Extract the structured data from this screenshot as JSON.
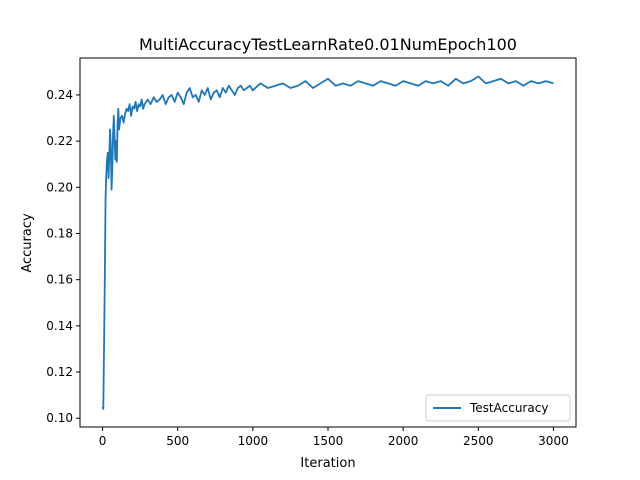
{
  "chart_data": {
    "type": "line",
    "title": "MultiAccuracyTestLearnRate0.01NumEpoch100",
    "xlabel": "Iteration",
    "ylabel": "Accuracy",
    "xlim": [
      -150,
      3150
    ],
    "ylim": [
      0.0962,
      0.256
    ],
    "xticks": [
      0,
      500,
      1000,
      1500,
      2000,
      2500,
      3000
    ],
    "yticks": [
      0.1,
      0.12,
      0.14,
      0.16,
      0.18,
      0.2,
      0.22,
      0.24
    ],
    "legend_position": "lower right",
    "grid": false,
    "color": "#1f77b4",
    "series": [
      {
        "name": "TestAccuracy",
        "x": [
          0,
          5,
          10,
          15,
          20,
          25,
          30,
          35,
          40,
          45,
          50,
          55,
          60,
          65,
          70,
          75,
          80,
          85,
          90,
          95,
          100,
          105,
          110,
          115,
          120,
          130,
          140,
          150,
          160,
          170,
          180,
          190,
          200,
          210,
          220,
          230,
          240,
          250,
          260,
          270,
          280,
          290,
          300,
          320,
          340,
          360,
          380,
          400,
          420,
          440,
          460,
          480,
          500,
          520,
          540,
          560,
          580,
          600,
          620,
          640,
          660,
          680,
          700,
          720,
          740,
          760,
          780,
          800,
          820,
          840,
          860,
          880,
          900,
          920,
          940,
          960,
          980,
          1000,
          1050,
          1100,
          1150,
          1200,
          1250,
          1300,
          1350,
          1400,
          1450,
          1500,
          1550,
          1600,
          1650,
          1700,
          1750,
          1800,
          1850,
          1900,
          1950,
          2000,
          2050,
          2100,
          2150,
          2200,
          2250,
          2300,
          2350,
          2400,
          2450,
          2500,
          2550,
          2600,
          2650,
          2700,
          2750,
          2800,
          2850,
          2900,
          2950,
          3000
        ],
        "values": [
          0.105,
          0.104,
          0.131,
          0.16,
          0.195,
          0.206,
          0.212,
          0.215,
          0.204,
          0.214,
          0.225,
          0.218,
          0.199,
          0.208,
          0.223,
          0.231,
          0.222,
          0.212,
          0.22,
          0.211,
          0.228,
          0.234,
          0.225,
          0.228,
          0.23,
          0.231,
          0.228,
          0.232,
          0.234,
          0.233,
          0.236,
          0.231,
          0.235,
          0.234,
          0.237,
          0.233,
          0.236,
          0.235,
          0.238,
          0.234,
          0.236,
          0.237,
          0.238,
          0.236,
          0.239,
          0.237,
          0.238,
          0.24,
          0.236,
          0.239,
          0.24,
          0.237,
          0.241,
          0.239,
          0.236,
          0.241,
          0.243,
          0.239,
          0.24,
          0.237,
          0.242,
          0.24,
          0.243,
          0.238,
          0.241,
          0.242,
          0.239,
          0.243,
          0.241,
          0.244,
          0.242,
          0.24,
          0.243,
          0.244,
          0.242,
          0.243,
          0.244,
          0.242,
          0.245,
          0.243,
          0.244,
          0.245,
          0.243,
          0.244,
          0.246,
          0.243,
          0.245,
          0.247,
          0.244,
          0.245,
          0.244,
          0.246,
          0.245,
          0.244,
          0.246,
          0.245,
          0.244,
          0.246,
          0.245,
          0.244,
          0.246,
          0.245,
          0.246,
          0.244,
          0.247,
          0.245,
          0.246,
          0.248,
          0.245,
          0.246,
          0.247,
          0.245,
          0.246,
          0.244,
          0.246,
          0.245,
          0.246,
          0.245
        ]
      }
    ]
  }
}
